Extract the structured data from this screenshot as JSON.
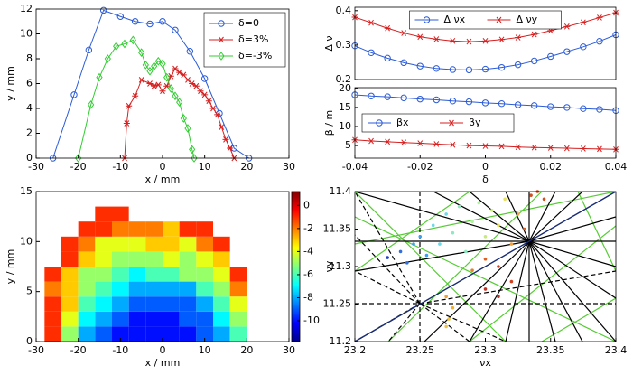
{
  "chart_data": [
    {
      "type": "line",
      "xlabel": "x / mm",
      "ylabel": "y / mm",
      "xlim": [
        -30,
        30
      ],
      "ylim": [
        0,
        12
      ],
      "xticks": [
        -30,
        -20,
        -10,
        0,
        10,
        20,
        30
      ],
      "yticks": [
        0,
        2,
        4,
        6,
        8,
        10,
        12
      ],
      "legend": "upper right",
      "series": [
        {
          "name": "δ=0",
          "color": "#2b5bd7",
          "marker": "o",
          "x": [
            -26,
            -21,
            -17.5,
            -14,
            -10,
            -6.5,
            -3,
            0,
            3,
            6.5,
            10,
            13.5,
            17,
            20.5
          ],
          "values": [
            0,
            5.1,
            8.7,
            11.9,
            11.4,
            11.0,
            10.8,
            11.0,
            10.3,
            8.6,
            6.4,
            3.6,
            0.8,
            0
          ]
        },
        {
          "name": "δ=3%",
          "color": "#d62020",
          "marker": "*",
          "x": [
            -9,
            -8.5,
            -8,
            -6.5,
            -5,
            -3,
            -2,
            -1,
            0,
            1,
            2,
            3,
            4,
            5,
            6,
            7,
            8,
            9,
            10,
            11,
            12,
            13,
            14,
            15,
            16,
            17
          ],
          "values": [
            0,
            2.8,
            4.2,
            5.0,
            6.3,
            6.0,
            5.8,
            5.9,
            5.4,
            5.8,
            6.6,
            7.2,
            6.9,
            6.7,
            6.3,
            6.0,
            5.8,
            5.4,
            5.1,
            4.6,
            4.0,
            3.5,
            2.5,
            1.5,
            0.8,
            0
          ]
        },
        {
          "name": "δ=-3%",
          "color": "#33cc33",
          "marker": "d",
          "x": [
            -20,
            -17,
            -15,
            -13,
            -11,
            -9,
            -7,
            -5,
            -4,
            -3,
            -2,
            -1,
            0,
            1,
            2,
            3,
            4,
            5,
            6,
            7,
            7.5
          ],
          "values": [
            0,
            4.3,
            6.5,
            8.0,
            9.0,
            9.2,
            9.5,
            8.5,
            7.5,
            7.0,
            7.4,
            7.8,
            7.6,
            6.5,
            5.6,
            5.0,
            4.5,
            3.2,
            2.4,
            0.7,
            0
          ]
        }
      ]
    },
    {
      "type": "line",
      "ylabel": "Δ ν",
      "xlim": [
        -0.04,
        0.04
      ],
      "ylim": [
        0.2,
        0.41
      ],
      "yticks": [
        0.2,
        0.3,
        0.4
      ],
      "legend": "upper center",
      "x": [
        -0.04,
        -0.035,
        -0.03,
        -0.025,
        -0.02,
        -0.015,
        -0.01,
        -0.005,
        0,
        0.005,
        0.01,
        0.015,
        0.02,
        0.025,
        0.03,
        0.035,
        0.04
      ],
      "series": [
        {
          "name": "Δ νx",
          "color": "#2b5bd7",
          "marker": "o",
          "values": [
            0.298,
            0.278,
            0.262,
            0.249,
            0.239,
            0.232,
            0.229,
            0.228,
            0.23,
            0.235,
            0.243,
            0.254,
            0.267,
            0.281,
            0.295,
            0.311,
            0.33
          ]
        },
        {
          "name": "Δ νy",
          "color": "#d62020",
          "marker": "*",
          "values": [
            0.381,
            0.365,
            0.349,
            0.335,
            0.324,
            0.317,
            0.312,
            0.31,
            0.312,
            0.316,
            0.322,
            0.331,
            0.342,
            0.354,
            0.366,
            0.38,
            0.394
          ]
        }
      ]
    },
    {
      "type": "line",
      "xlabel": "δ",
      "ylabel": "β / m",
      "xlim": [
        -0.04,
        0.04
      ],
      "ylim": [
        1.7,
        20.2
      ],
      "xticks": [
        -0.04,
        -0.02,
        0,
        0.02,
        0.04
      ],
      "yticks": [
        5,
        10,
        15,
        20
      ],
      "legend": "center left",
      "x": [
        -0.04,
        -0.035,
        -0.03,
        -0.025,
        -0.02,
        -0.015,
        -0.01,
        -0.005,
        0,
        0.005,
        0.01,
        0.015,
        0.02,
        0.025,
        0.03,
        0.035,
        0.04
      ],
      "series": [
        {
          "name": "βx",
          "color": "#2b5bd7",
          "marker": "o",
          "values": [
            18.3,
            18.0,
            17.8,
            17.5,
            17.2,
            17.0,
            16.7,
            16.5,
            16.2,
            16.0,
            15.7,
            15.5,
            15.2,
            15.0,
            14.7,
            14.5,
            14.2
          ]
        },
        {
          "name": "βy",
          "color": "#d62020",
          "marker": "*",
          "values": [
            6.5,
            6.2,
            6.0,
            5.8,
            5.6,
            5.4,
            5.2,
            5.0,
            4.9,
            4.8,
            4.6,
            4.5,
            4.4,
            4.3,
            4.2,
            4.1,
            4.0
          ]
        }
      ]
    },
    {
      "type": "heatmap",
      "xlabel": "x / mm",
      "ylabel": "y / mm",
      "xlim": [
        -30,
        30
      ],
      "ylim": [
        0,
        15
      ],
      "xticks": [
        -30,
        -20,
        -10,
        0,
        10,
        20,
        30
      ],
      "yticks": [
        0,
        5,
        10,
        15
      ],
      "x_bins": [
        -28,
        -24,
        -20,
        -16,
        -12,
        -8,
        -4,
        0,
        4,
        8,
        12,
        16,
        20,
        24
      ],
      "y_bins": [
        0,
        1.5,
        3,
        4.5,
        6,
        7.5,
        9,
        10.5,
        12,
        13.5
      ],
      "clim": [
        -11.8,
        1.2
      ],
      "cticks": [
        0,
        -2,
        -4,
        -6,
        -8,
        -10
      ],
      "values": [
        [
          -1,
          -5,
          -8,
          -9,
          -10,
          -10,
          -10,
          -10,
          -10,
          -9,
          -8,
          -6,
          null
        ],
        [
          -1,
          -4,
          -7,
          -8,
          -9,
          -10,
          -10,
          -10,
          -9,
          -9,
          -7,
          -5,
          null
        ],
        [
          -1,
          -3,
          -6,
          -7,
          -8,
          -9,
          -9,
          -9,
          -9,
          -8,
          -6,
          -4,
          null
        ],
        [
          -2,
          -3,
          -5,
          -6,
          -7,
          -8,
          -8,
          -8,
          -8,
          -6,
          -5,
          -2,
          null
        ],
        [
          -1,
          -3,
          -5,
          -5,
          -6,
          -7,
          -6,
          -6,
          -5,
          -5,
          -4,
          -1,
          null
        ],
        [
          null,
          -1,
          -3,
          -4,
          -5,
          -5,
          -5,
          -4,
          -5,
          -4,
          -3,
          null,
          null
        ],
        [
          null,
          -1,
          -2,
          -4,
          -4,
          -4,
          -3,
          -3,
          -4,
          -2,
          -1,
          null,
          null
        ],
        [
          null,
          null,
          -1,
          -1,
          -2,
          -2,
          -2,
          -3,
          -1,
          -1,
          null,
          null,
          null
        ],
        [
          null,
          null,
          null,
          -1,
          -1,
          null,
          null,
          null,
          null,
          null,
          null,
          null,
          null
        ]
      ]
    },
    {
      "type": "scatter",
      "xlabel": "νx",
      "ylabel": "νy",
      "xlim": [
        23.2,
        23.4
      ],
      "ylim": [
        11.2,
        11.4
      ],
      "xticks": [
        23.2,
        23.25,
        23.3,
        23.35,
        23.4
      ],
      "yticks": [
        11.2,
        11.25,
        11.3,
        11.35,
        11.4
      ],
      "x": [
        23.225,
        23.235,
        23.24,
        23.245,
        23.25,
        23.255,
        23.26,
        23.265,
        23.27,
        23.275,
        23.28,
        23.285,
        23.29,
        23.295,
        23.3,
        23.305,
        23.31,
        23.315,
        23.32,
        23.325,
        23.33,
        23.3,
        23.29,
        23.31,
        23.32,
        23.3,
        23.31,
        23.335,
        23.34,
        23.345,
        23.27,
        23.275,
        23.272,
        23.27
      ],
      "values": [
        11.312,
        11.32,
        11.305,
        11.33,
        11.34,
        11.315,
        11.355,
        11.33,
        11.37,
        11.345,
        11.38,
        11.32,
        11.36,
        11.385,
        11.34,
        11.375,
        11.355,
        11.39,
        11.33,
        11.37,
        11.35,
        11.31,
        11.295,
        11.3,
        11.28,
        11.27,
        11.26,
        11.395,
        11.4,
        11.39,
        11.26,
        11.245,
        11.23,
        11.22
      ],
      "colors": [
        "#1f3fd0",
        "#2f6fe0",
        "#2f6fe0",
        "#3aa0f0",
        "#3aa0f0",
        "#3aa0f0",
        "#6cd8e8",
        "#6cd8e8",
        "#6cd8e8",
        "#8fe8c0",
        "#8fe8c0",
        "#8fe8c0",
        "#b0f0a0",
        "#b0f0a0",
        "#c8e880",
        "#c8e880",
        "#e8e060",
        "#e8e060",
        "#f0a040",
        "#f0a040",
        "#e06020",
        "#e06020",
        "#e08030",
        "#d04020",
        "#d04020",
        "#c03020",
        "#c03020",
        "#d05020",
        "#d05020",
        "#d05020",
        "#f0a030",
        "#f0b030",
        "#f0c040",
        "#f0c040"
      ]
    }
  ]
}
